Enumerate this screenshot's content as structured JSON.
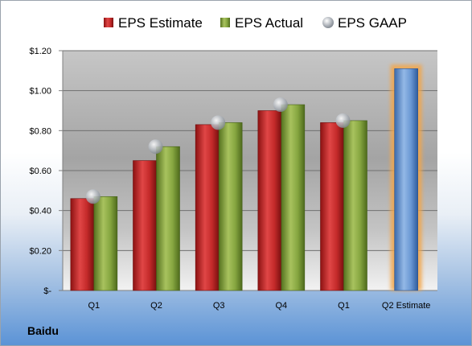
{
  "company": "Baidu",
  "chart_data": {
    "type": "bar",
    "categories": [
      "Q1",
      "Q2",
      "Q3",
      "Q4",
      "Q1",
      "Q2 Estimate"
    ],
    "series": [
      {
        "name": "EPS Estimate",
        "values": [
          0.46,
          0.65,
          0.83,
          0.9,
          0.84,
          null
        ],
        "color": "#c42a2a"
      },
      {
        "name": "EPS Actual",
        "values": [
          0.47,
          0.72,
          0.84,
          0.93,
          0.85,
          null
        ],
        "color": "#7e9e3a"
      },
      {
        "name": "EPS GAAP",
        "values": [
          0.47,
          0.72,
          0.84,
          0.93,
          0.85,
          null
        ],
        "color": "#b8bec6",
        "marker": "circle"
      },
      {
        "name": "Q2 Estimate",
        "values": [
          null,
          null,
          null,
          null,
          null,
          1.11
        ],
        "color": "#5f8fce",
        "highlight": "#f3a64a"
      }
    ],
    "y_ticks": [
      "$-",
      "$0.20",
      "$0.40",
      "$0.60",
      "$0.80",
      "$1.00",
      "$1.20"
    ],
    "ylim": [
      0,
      1.2
    ],
    "grid": true,
    "legend_position": "top"
  }
}
